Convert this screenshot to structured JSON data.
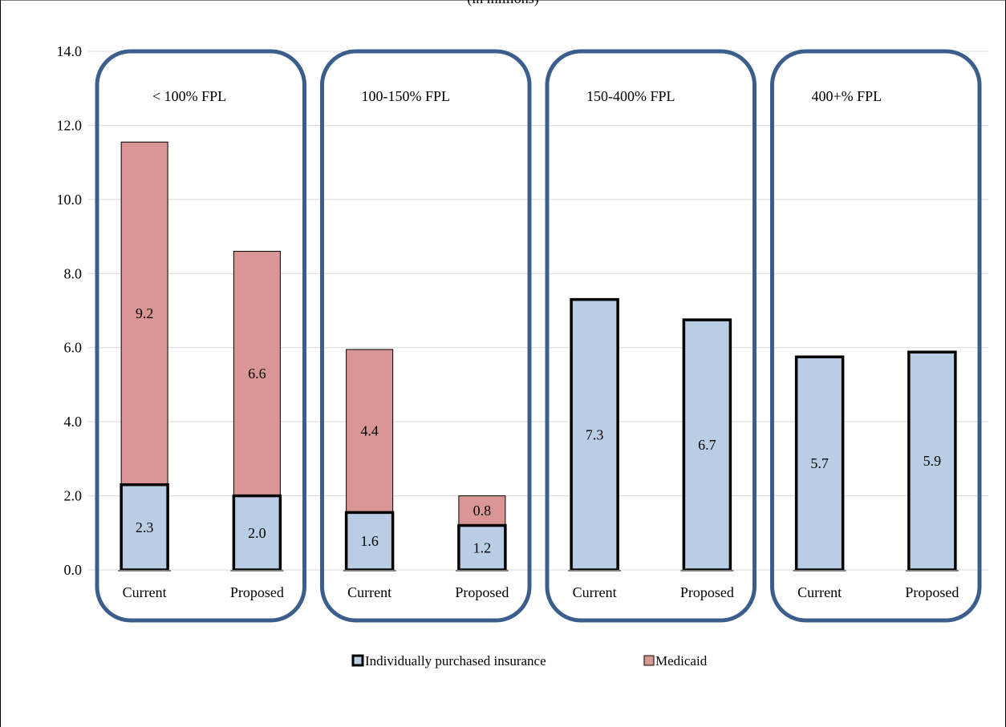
{
  "chart_data": {
    "type": "bar",
    "stacked": true,
    "title": "(in millions)",
    "ylim": [
      0,
      14
    ],
    "yticks": [
      "0.0",
      "2.0",
      "4.0",
      "6.0",
      "8.0",
      "10.0",
      "12.0",
      "14.0"
    ],
    "grid": true,
    "legend_position": "bottom",
    "groups": [
      {
        "label": "< 100% FPL",
        "bars": [
          {
            "category": "Current",
            "individual": 2.3,
            "individual_label": "2.3",
            "medicaid": 9.25,
            "medicaid_label": "9.2"
          },
          {
            "category": "Proposed",
            "individual": 2.0,
            "individual_label": "2.0",
            "medicaid": 6.6,
            "medicaid_label": "6.6"
          }
        ]
      },
      {
        "label": "100-150% FPL",
        "bars": [
          {
            "category": "Current",
            "individual": 1.55,
            "individual_label": "1.6",
            "medicaid": 4.4,
            "medicaid_label": "4.4"
          },
          {
            "category": "Proposed",
            "individual": 1.2,
            "individual_label": "1.2",
            "medicaid": 0.8,
            "medicaid_label": "0.8"
          }
        ]
      },
      {
        "label": "150-400% FPL",
        "bars": [
          {
            "category": "Current",
            "individual": 7.3,
            "individual_label": "7.3",
            "medicaid": 0,
            "medicaid_label": ""
          },
          {
            "category": "Proposed",
            "individual": 6.75,
            "individual_label": "6.7",
            "medicaid": 0,
            "medicaid_label": ""
          }
        ]
      },
      {
        "label": "400+% FPL",
        "bars": [
          {
            "category": "Current",
            "individual": 5.75,
            "individual_label": "5.7",
            "medicaid": 0,
            "medicaid_label": ""
          },
          {
            "category": "Proposed",
            "individual": 5.88,
            "individual_label": "5.9",
            "medicaid": 0,
            "medicaid_label": ""
          }
        ]
      }
    ],
    "series": [
      {
        "key": "individual",
        "name": "Individually purchased insurance",
        "color": "#b9cde5",
        "border": "#000000"
      },
      {
        "key": "medicaid",
        "name": "Medicaid",
        "color": "#d99694",
        "border": "#000000"
      }
    ],
    "colors": {
      "group_box": "#3b5e8c",
      "gridline": "#d9d9d9",
      "axis": "#808080"
    }
  }
}
